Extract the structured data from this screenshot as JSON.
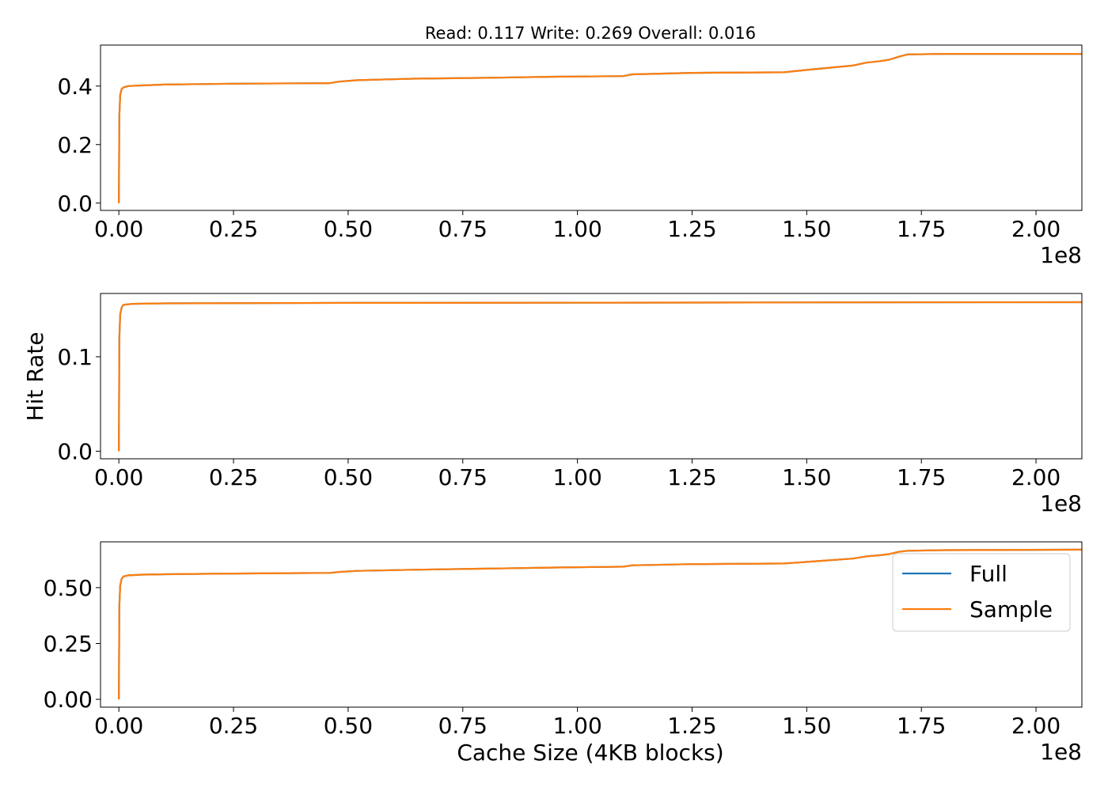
{
  "figure": {
    "title": "Read: 0.117 Write: 0.269 Overall: 0.016",
    "ylabel": "Hit Rate",
    "xlabel": "Cache Size (4KB blocks)"
  },
  "chart_data": [
    {
      "type": "line",
      "xlim": [
        -0.04,
        2.1
      ],
      "x_scale_label": "1e8",
      "ylim": [
        -0.025,
        0.54
      ],
      "xticks": [
        0,
        0.25,
        0.5,
        0.75,
        1.0,
        1.25,
        1.5,
        1.75,
        2.0
      ],
      "xtick_labels": [
        "0.00",
        "0.25",
        "0.50",
        "0.75",
        "1.00",
        "1.25",
        "1.50",
        "1.75",
        "2.00"
      ],
      "yticks": [
        0,
        0.2,
        0.4
      ],
      "ytick_labels": [
        "0.0",
        "0.2",
        "0.4"
      ],
      "series": [
        {
          "name": "Full",
          "color": "#1f77b4",
          "x": [
            0,
            0.001,
            0.003,
            0.006,
            0.01,
            0.02,
            0.05,
            0.1,
            0.25,
            0.46,
            0.48,
            0.52,
            0.64,
            0.8,
            0.95,
            1.1,
            1.12,
            1.25,
            1.45,
            1.5,
            1.6,
            1.63,
            1.66,
            1.68,
            1.7,
            1.72,
            1.8,
            2.1
          ],
          "y": [
            0,
            0.3,
            0.37,
            0.39,
            0.395,
            0.4,
            0.402,
            0.405,
            0.408,
            0.41,
            0.415,
            0.42,
            0.425,
            0.428,
            0.432,
            0.434,
            0.44,
            0.445,
            0.447,
            0.455,
            0.47,
            0.48,
            0.485,
            0.49,
            0.5,
            0.508,
            0.51,
            0.51
          ]
        },
        {
          "name": "Sample",
          "color": "#ff7f0e",
          "x": [
            0,
            0.001,
            0.003,
            0.006,
            0.01,
            0.02,
            0.05,
            0.1,
            0.25,
            0.46,
            0.48,
            0.52,
            0.64,
            0.8,
            0.95,
            1.1,
            1.12,
            1.25,
            1.45,
            1.5,
            1.6,
            1.63,
            1.66,
            1.68,
            1.7,
            1.72,
            1.8,
            2.1
          ],
          "y": [
            0,
            0.3,
            0.37,
            0.39,
            0.395,
            0.4,
            0.402,
            0.405,
            0.408,
            0.41,
            0.415,
            0.42,
            0.425,
            0.428,
            0.432,
            0.434,
            0.44,
            0.445,
            0.447,
            0.455,
            0.47,
            0.48,
            0.485,
            0.49,
            0.5,
            0.508,
            0.51,
            0.51
          ]
        }
      ]
    },
    {
      "type": "line",
      "xlim": [
        -0.04,
        2.1
      ],
      "x_scale_label": "1e8",
      "ylim": [
        -0.008,
        0.167
      ],
      "xticks": [
        0,
        0.25,
        0.5,
        0.75,
        1.0,
        1.25,
        1.5,
        1.75,
        2.0
      ],
      "xtick_labels": [
        "0.00",
        "0.25",
        "0.50",
        "0.75",
        "1.00",
        "1.25",
        "1.50",
        "1.75",
        "2.00"
      ],
      "yticks": [
        0,
        0.1
      ],
      "ytick_labels": [
        "0.0",
        "0.1"
      ],
      "series": [
        {
          "name": "Full",
          "color": "#1f77b4",
          "x": [
            0,
            0.001,
            0.003,
            0.006,
            0.01,
            0.03,
            0.1,
            0.5,
            1.0,
            1.5,
            2.1
          ],
          "y": [
            0,
            0.12,
            0.145,
            0.152,
            0.155,
            0.156,
            0.1565,
            0.157,
            0.1572,
            0.1575,
            0.1578
          ]
        },
        {
          "name": "Sample",
          "color": "#ff7f0e",
          "x": [
            0,
            0.001,
            0.003,
            0.006,
            0.01,
            0.03,
            0.1,
            0.5,
            1.0,
            1.5,
            2.1
          ],
          "y": [
            0,
            0.12,
            0.145,
            0.152,
            0.155,
            0.156,
            0.1565,
            0.157,
            0.1572,
            0.1575,
            0.1578
          ]
        }
      ]
    },
    {
      "type": "line",
      "xlim": [
        -0.04,
        2.1
      ],
      "x_scale_label": "1e8",
      "ylim": [
        -0.035,
        0.705
      ],
      "xticks": [
        0,
        0.25,
        0.5,
        0.75,
        1.0,
        1.25,
        1.5,
        1.75,
        2.0
      ],
      "xtick_labels": [
        "0.00",
        "0.25",
        "0.50",
        "0.75",
        "1.00",
        "1.25",
        "1.50",
        "1.75",
        "2.00"
      ],
      "yticks": [
        0,
        0.25,
        0.5
      ],
      "ytick_labels": [
        "0.00",
        "0.25",
        "0.50"
      ],
      "legend": "upper-right",
      "series": [
        {
          "name": "Full",
          "color": "#1f77b4",
          "x": [
            0,
            0.001,
            0.003,
            0.006,
            0.01,
            0.02,
            0.05,
            0.1,
            0.25,
            0.46,
            0.48,
            0.52,
            0.64,
            0.8,
            0.95,
            1.1,
            1.12,
            1.25,
            1.45,
            1.5,
            1.6,
            1.63,
            1.66,
            1.68,
            1.7,
            1.72,
            1.8,
            2.1
          ],
          "y": [
            0,
            0.42,
            0.51,
            0.54,
            0.55,
            0.555,
            0.558,
            0.56,
            0.563,
            0.566,
            0.57,
            0.575,
            0.58,
            0.585,
            0.59,
            0.594,
            0.6,
            0.605,
            0.608,
            0.615,
            0.63,
            0.64,
            0.645,
            0.65,
            0.66,
            0.665,
            0.668,
            0.67
          ]
        },
        {
          "name": "Sample",
          "color": "#ff7f0e",
          "x": [
            0,
            0.001,
            0.003,
            0.006,
            0.01,
            0.02,
            0.05,
            0.1,
            0.25,
            0.46,
            0.48,
            0.52,
            0.64,
            0.8,
            0.95,
            1.1,
            1.12,
            1.25,
            1.45,
            1.5,
            1.6,
            1.63,
            1.66,
            1.68,
            1.7,
            1.72,
            1.8,
            2.1
          ],
          "y": [
            0,
            0.42,
            0.51,
            0.54,
            0.55,
            0.555,
            0.558,
            0.56,
            0.563,
            0.566,
            0.57,
            0.575,
            0.58,
            0.585,
            0.59,
            0.594,
            0.6,
            0.605,
            0.608,
            0.615,
            0.63,
            0.64,
            0.645,
            0.65,
            0.66,
            0.665,
            0.668,
            0.67
          ]
        }
      ]
    }
  ]
}
